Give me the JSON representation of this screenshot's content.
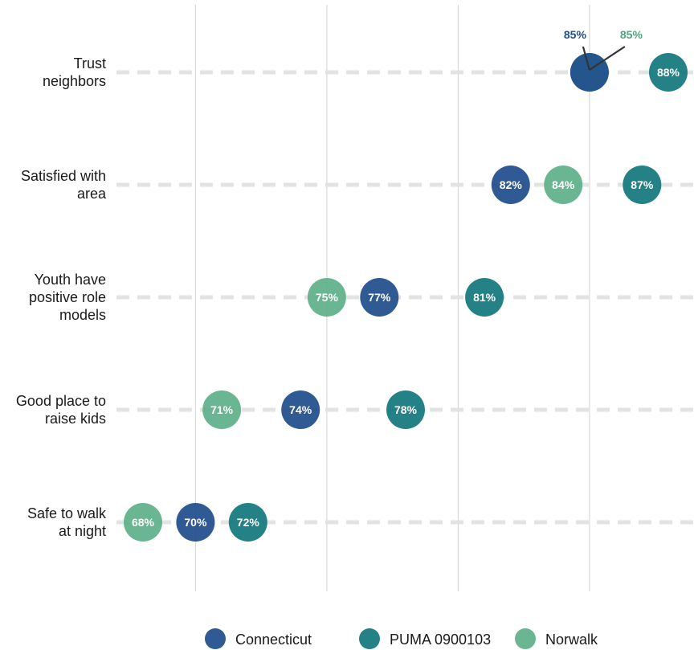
{
  "chart_data": {
    "type": "scatter",
    "categories": [
      [
        "Trust",
        "neighbors"
      ],
      [
        "Satisfied with",
        "area"
      ],
      [
        "Youth have",
        "positive role",
        "models"
      ],
      [
        "Good place to",
        "raise kids"
      ],
      [
        "Safe to walk",
        "at night"
      ]
    ],
    "series": [
      {
        "name": "Connecticut",
        "color": "#1f4e8c",
        "values": [
          85,
          82,
          77,
          74,
          70
        ],
        "labels": [
          "85%",
          "82%",
          "77%",
          "74%",
          "70%"
        ]
      },
      {
        "name": "PUMA 0900103",
        "color": "#13777d",
        "values": [
          88,
          87,
          81,
          78,
          72
        ],
        "labels": [
          "88%",
          "87%",
          "81%",
          "78%",
          "72%"
        ]
      },
      {
        "name": "Norwalk",
        "color": "#5fb08a",
        "values": [
          85,
          84,
          75,
          71,
          68
        ],
        "labels": [
          "85%",
          "84%",
          "75%",
          "71%",
          "68%"
        ]
      }
    ],
    "label_colors": {
      "Connecticut": "#1f4e8c",
      "PUMA 0900103": "#13777d",
      "Norwalk": "#4fa67e"
    },
    "xlim": [
      68,
      88
    ],
    "gridlines_x": [
      70,
      75,
      80,
      85
    ],
    "x_tick_labels_shown": false,
    "legend_position": "bottom",
    "title": "",
    "xlabel": "",
    "ylabel": ""
  }
}
